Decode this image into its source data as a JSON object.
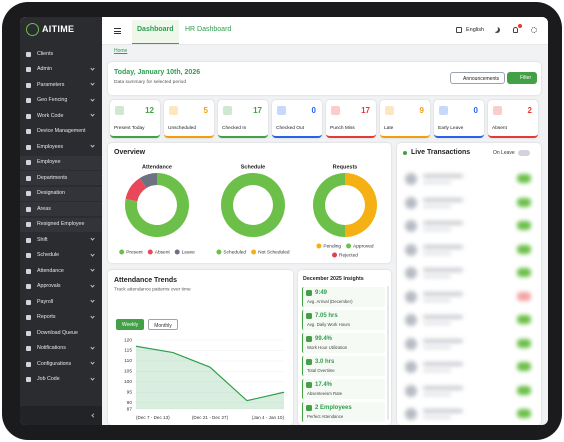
{
  "brand": "AITIME",
  "sidebar": {
    "items": [
      {
        "label": "Clients"
      },
      {
        "label": "Admin",
        "submenu": true
      },
      {
        "label": "Parameters",
        "submenu": true
      },
      {
        "label": "Geo Fencing",
        "submenu": true
      },
      {
        "label": "Work Code",
        "submenu": true
      },
      {
        "label": "Device Management"
      },
      {
        "label": "Employees",
        "submenu": true
      },
      {
        "label": "Employee"
      },
      {
        "label": "Departments"
      },
      {
        "label": "Designation"
      },
      {
        "label": "Areas"
      },
      {
        "label": "Resigned Employee"
      },
      {
        "label": "Shift",
        "submenu": true
      },
      {
        "label": "Schedule",
        "submenu": true
      },
      {
        "label": "Attendance",
        "submenu": true
      },
      {
        "label": "Approvals",
        "submenu": true
      },
      {
        "label": "Payroll",
        "submenu": true
      },
      {
        "label": "Reports",
        "submenu": true
      },
      {
        "label": "Download Queue"
      },
      {
        "label": "Notifications",
        "submenu": true
      },
      {
        "label": "Configurations",
        "submenu": true
      },
      {
        "label": "Job Code",
        "submenu": true
      }
    ]
  },
  "header": {
    "tabs": [
      "Dashboard",
      "HR Dashboard"
    ],
    "language": "English"
  },
  "breadcrumb": "Home",
  "summary": {
    "date": "Today, January 10th, 2026",
    "subtitle": "Data summary for selected period",
    "buttons": [
      "Announcements",
      "Filter"
    ]
  },
  "stats": [
    {
      "label": "Present Today",
      "value": 12,
      "color": "#43a047"
    },
    {
      "label": "Unscheduled",
      "value": 5,
      "color": "#f59e0b"
    },
    {
      "label": "Checked In",
      "value": 17,
      "color": "#43a047"
    },
    {
      "label": "Checked Out",
      "value": 0,
      "color": "#2563eb"
    },
    {
      "label": "Punch Miss",
      "value": 17,
      "color": "#e53935"
    },
    {
      "label": "Late",
      "value": 9,
      "color": "#f59e0b"
    },
    {
      "label": "Early Leave",
      "value": 0,
      "color": "#2563eb"
    },
    {
      "label": "Absent",
      "value": 2,
      "color": "#e53935"
    }
  ],
  "overview": {
    "title": "Overview"
  },
  "chart_data": [
    {
      "type": "donut",
      "title": "Attendance",
      "categories": [
        "Present",
        "Absent",
        "Leave"
      ],
      "values": [
        78,
        13,
        9
      ],
      "colors": [
        "#6cc04a",
        "#e8485a",
        "#6b7280"
      ]
    },
    {
      "type": "donut",
      "title": "Schedule",
      "categories": [
        "Scheduled",
        "Not Scheduled"
      ],
      "values": [
        100,
        0
      ],
      "colors": [
        "#6cc04a",
        "#f5b014"
      ]
    },
    {
      "type": "donut",
      "title": "Requests",
      "categories": [
        "Pending",
        "Approved",
        "Rejected"
      ],
      "values": [
        50,
        50,
        0
      ],
      "colors": [
        "#f5b014",
        "#6cc04a",
        "#e04050"
      ]
    },
    {
      "type": "line",
      "title": "Attendance Trends",
      "subtitle": "Track attendance patterns over time",
      "categories": [
        "(Dec 7 - Dec 13)",
        null,
        "(Dec 21 - Dec 27)",
        null,
        "(Jan 4 - Jan 10)"
      ],
      "values": [
        117,
        114,
        107,
        91,
        95
      ],
      "color": "#2e9e4f",
      "ylim": [
        87,
        120
      ],
      "yticks": [
        120,
        115,
        110,
        105,
        100,
        95,
        90,
        87
      ],
      "grid": true
    }
  ],
  "trend_controls": [
    "Weekly",
    "Monthly"
  ],
  "insights": {
    "title": "December 2025 Insights",
    "items": [
      {
        "value": "9:49",
        "label": "Avg. Arrival (December)"
      },
      {
        "value": "7.05 hrs",
        "label": "Avg. Daily Work Hours"
      },
      {
        "value": "99.4%",
        "label": "Work Hour Utilization"
      },
      {
        "value": "3.0 hrs",
        "label": "Total Overtime"
      },
      {
        "value": "17.4%",
        "label": "Absenteeism Rate"
      },
      {
        "value": "2 Employees",
        "label": "Perfect Attendance"
      }
    ]
  },
  "live": {
    "title": "Live Transactions",
    "toggle": "On Leave"
  }
}
